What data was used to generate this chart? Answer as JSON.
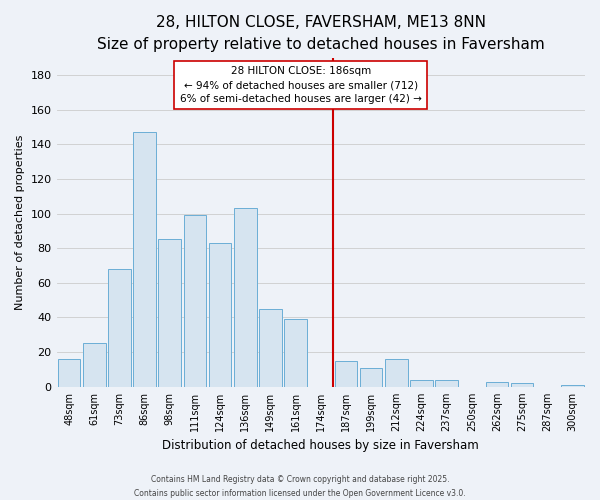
{
  "title": "28, HILTON CLOSE, FAVERSHAM, ME13 8NN",
  "subtitle": "Size of property relative to detached houses in Faversham",
  "xlabel": "Distribution of detached houses by size in Faversham",
  "ylabel": "Number of detached properties",
  "bar_labels": [
    "48sqm",
    "61sqm",
    "73sqm",
    "86sqm",
    "98sqm",
    "111sqm",
    "124sqm",
    "136sqm",
    "149sqm",
    "161sqm",
    "174sqm",
    "187sqm",
    "199sqm",
    "212sqm",
    "224sqm",
    "237sqm",
    "250sqm",
    "262sqm",
    "275sqm",
    "287sqm",
    "300sqm"
  ],
  "bar_values": [
    16,
    25,
    68,
    147,
    85,
    99,
    83,
    103,
    45,
    39,
    0,
    15,
    11,
    16,
    4,
    4,
    0,
    3,
    2,
    0,
    1
  ],
  "bar_color": "#d6e4f0",
  "bar_edge_color": "#6baed6",
  "vline_x_index": 11,
  "vline_color": "#cc0000",
  "annotation_title": "28 HILTON CLOSE: 186sqm",
  "annotation_line1": "← 94% of detached houses are smaller (712)",
  "annotation_line2": "6% of semi-detached houses are larger (42) →",
  "annotation_box_color": "white",
  "annotation_box_edge": "#cc0000",
  "ylim": [
    0,
    190
  ],
  "yticks": [
    0,
    20,
    40,
    60,
    80,
    100,
    120,
    140,
    160,
    180
  ],
  "footnote1": "Contains HM Land Registry data © Crown copyright and database right 2025.",
  "footnote2": "Contains public sector information licensed under the Open Government Licence v3.0.",
  "bg_color": "#eef2f8",
  "grid_color": "#cccccc",
  "title_fontsize": 11,
  "subtitle_fontsize": 9,
  "ann_fontsize": 7.5
}
